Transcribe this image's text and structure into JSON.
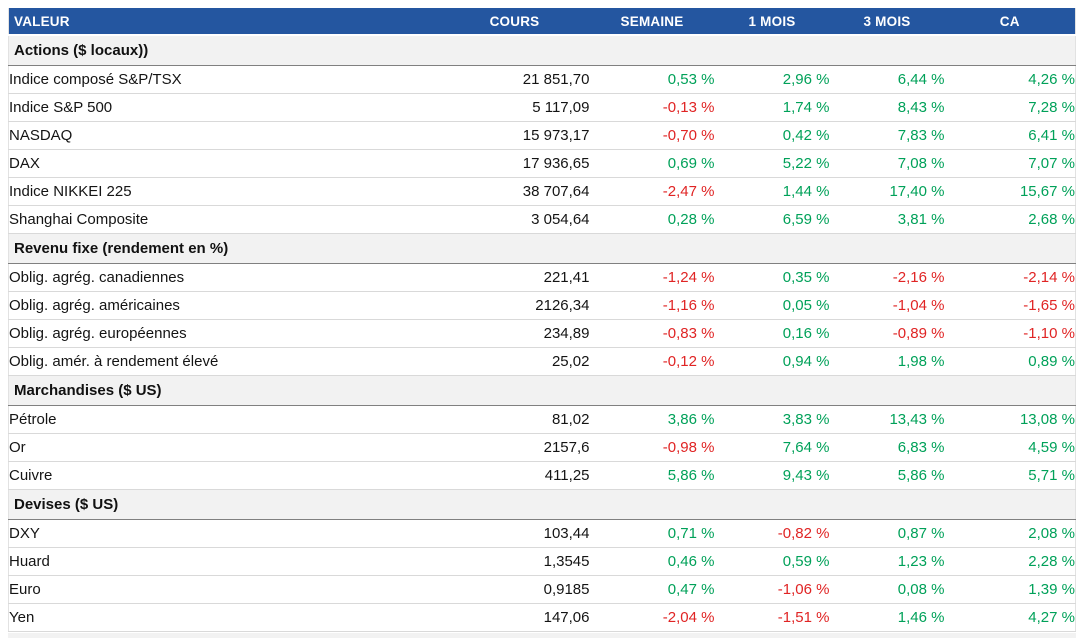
{
  "colors": {
    "header_bg": "#2456a0",
    "header_text": "#ffffff",
    "section_bg": "#f2f2f2",
    "positive": "#00a159",
    "negative": "#e02424",
    "row_border": "#d9d9d9",
    "section_border": "#808080"
  },
  "columns": [
    "VALEUR",
    "COURS",
    "SEMAINE",
    "1 MOIS",
    "3 MOIS",
    "CA"
  ],
  "sections": [
    {
      "label": "Actions ($ locaux))",
      "rows": [
        {
          "name": "Indice composé S&P/TSX",
          "cells": [
            "21 851,70",
            "0,53 %",
            "2,96 %",
            "6,44 %",
            "4,26 %"
          ]
        },
        {
          "name": "Indice S&P 500",
          "cells": [
            "5 117,09",
            "-0,13 %",
            "1,74 %",
            "8,43 %",
            "7,28 %"
          ]
        },
        {
          "name": "NASDAQ",
          "cells": [
            "15 973,17",
            "-0,70 %",
            "0,42 %",
            "7,83 %",
            "6,41 %"
          ]
        },
        {
          "name": "DAX",
          "cells": [
            "17 936,65",
            "0,69 %",
            "5,22 %",
            "7,08 %",
            "7,07 %"
          ]
        },
        {
          "name": "Indice NIKKEI 225",
          "cells": [
            "38 707,64",
            "-2,47 %",
            "1,44 %",
            "17,40 %",
            "15,67 %"
          ]
        },
        {
          "name": "Shanghai Composite",
          "cells": [
            "3 054,64",
            "0,28 %",
            "6,59 %",
            "3,81 %",
            "2,68 %"
          ]
        }
      ]
    },
    {
      "label": "Revenu fixe (rendement en %)",
      "rows": [
        {
          "name": "Oblig. agrég. canadiennes",
          "cells": [
            "221,41",
            "-1,24 %",
            "0,35 %",
            "-2,16 %",
            "-2,14 %"
          ]
        },
        {
          "name": "Oblig. agrég. américaines",
          "cells": [
            "2126,34",
            "-1,16 %",
            "0,05 %",
            "-1,04 %",
            "-1,65 %"
          ]
        },
        {
          "name": "Oblig. agrég. européennes",
          "cells": [
            "234,89",
            "-0,83 %",
            "0,16 %",
            "-0,89 %",
            "-1,10 %"
          ]
        },
        {
          "name": "Oblig. amér. à rendement élevé",
          "cells": [
            "25,02",
            "-0,12 %",
            "0,94 %",
            "1,98 %",
            "0,89 %"
          ]
        }
      ]
    },
    {
      "label": "Marchandises ($ US)",
      "rows": [
        {
          "name": "Pétrole",
          "cells": [
            "81,02",
            "3,86 %",
            "3,83 %",
            "13,43 %",
            "13,08 %"
          ]
        },
        {
          "name": "Or",
          "cells": [
            "2157,6",
            "-0,98 %",
            "7,64 %",
            "6,83 %",
            "4,59 %"
          ]
        },
        {
          "name": "Cuivre",
          "cells": [
            "411,25",
            "5,86 %",
            "9,43 %",
            "5,86 %",
            "5,71 %"
          ]
        }
      ]
    },
    {
      "label": "Devises ($ US)",
      "rows": [
        {
          "name": "DXY",
          "cells": [
            "103,44",
            "0,71 %",
            "-0,82 %",
            "0,87 %",
            "2,08 %"
          ]
        },
        {
          "name": "Huard",
          "cells": [
            "1,3545",
            "0,46 %",
            "0,59 %",
            "1,23 %",
            "2,28 %"
          ]
        },
        {
          "name": "Euro",
          "cells": [
            "0,9185",
            "0,47 %",
            "-1,06 %",
            "0,08 %",
            "1,39 %"
          ]
        },
        {
          "name": "Yen",
          "cells": [
            "147,06",
            "-2,04 %",
            "-1,51 %",
            "1,46 %",
            "4,27 %"
          ]
        }
      ]
    }
  ]
}
